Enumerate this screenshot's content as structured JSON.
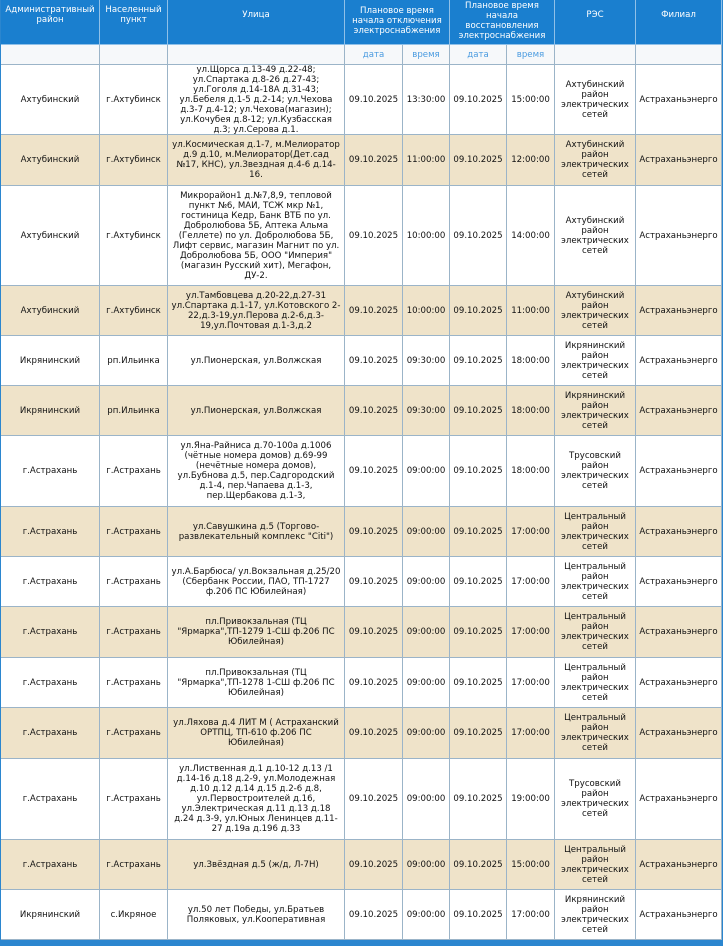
{
  "table": {
    "header": [
      "Административный район",
      "Населенный пункт",
      "Улица",
      "Плановое время начала отключения электроснабжения",
      "Плановое время начала восстановления электроснабжения",
      "РЭС",
      "Филиал"
    ],
    "subheader": [
      "дата",
      "время",
      "дата",
      "время"
    ],
    "rows": [
      [
        "Ахтубинский",
        "г.Ахтубинск",
        "ул.Щорса д.13-49 д.22-48; ул.Спартака д.8-26 д.27-43; ул.Гоголя д.14-18А д.31-43; ул.Бебеля д.1-5 д.2-14; ул.Чехова д.3-7 д.4-12; ул.Чехова(магазин); ул.Кочубея д.8-12; ул.Кузбасская д.3; ул.Серова д.1.",
        "09.10.2025",
        "13:30:00",
        "09.10.2025",
        "15:00:00",
        "Ахтубинский район электрических сетей",
        "Астраханьэнерго"
      ],
      [
        "Ахтубинский",
        "г.Ахтубинск",
        "ул.Космическая д.1-7, м.Мелиоратор д.9 д.10, м.Мелиоратор(Дет.сад №17, КНС), ул.Звездная д.4-6 д.14-16.",
        "09.10.2025",
        "11:00:00",
        "09.10.2025",
        "12:00:00",
        "Ахтубинский район электрических сетей",
        "Астраханьэнерго"
      ],
      [
        "Ахтубинский",
        "г.Ахтубинск",
        "Микрорайон1 д.№7,8,9, тепловой пункт №6, МАИ, ТСЖ мкр №1, гостиница Кедр, Банк ВТБ по ул. Добролюбова 5Б, Аптека Альма (Геллете) по ул. Добролюбова 5Б, Лифт сервис, магазин Магнит по ул. Добролюбова 5Б, ООО \"Империя\" (магазин Русский хит), Мегафон, ДУ-2.",
        "09.10.2025",
        "10:00:00",
        "09.10.2025",
        "14:00:00",
        "Ахтубинский район электрических сетей",
        "Астраханьэнерго"
      ],
      [
        "Ахтубинский",
        "г.Ахтубинск",
        "ул.Тамбовцева д.20-22,д.27-31 ул.Спартака д.1-17, ул.Котовского 2-22,д.3-19,ул.Перова д.2-6,д.3-19,ул.Почтовая д.1-3,д.2",
        "09.10.2025",
        "10:00:00",
        "09.10.2025",
        "11:00:00",
        "Ахтубинский район электрических сетей",
        "Астраханьэнерго"
      ],
      [
        "Икрянинский",
        "рп.Ильинка",
        "ул.Пионерская, ул.Волжская",
        "09.10.2025",
        "09:30:00",
        "09.10.2025",
        "18:00:00",
        "Икрянинский район электрических сетей",
        "Астраханьэнерго"
      ],
      [
        "Икрянинский",
        "рп.Ильинка",
        "ул.Пионерская, ул.Волжская",
        "09.10.2025",
        "09:30:00",
        "09.10.2025",
        "18:00:00",
        "Икрянинский район электрических сетей",
        "Астраханьэнерго"
      ],
      [
        "г.Астрахань",
        "г.Астрахань",
        "ул.Яна-Райниса д.70-100а д.1006 (чётные номера домов) д.69-99 (нечётные номера домов), ул.Бубнова д.5, пер.Садгородский д.1-4, пер.Чапаева д.1-3, пер.Щербакова д.1-3,",
        "09.10.2025",
        "09:00:00",
        "09.10.2025",
        "18:00:00",
        "Трусовский район электрических сетей",
        "Астраханьэнерго"
      ],
      [
        "г.Астрахань",
        "г.Астрахань",
        "ул.Савушкина д.5 (Торгово-развлекательный комплекс \"Citi\")",
        "09.10.2025",
        "09:00:00",
        "09.10.2025",
        "17:00:00",
        "Центральный район электрических сетей",
        "Астраханьэнерго"
      ],
      [
        "г.Астрахань",
        "г.Астрахань",
        "ул.А.Барбюса/ ул.Вокзальная д.25/20 (Сбербанк России, ПАО, ТП-1727 ф.206 ПС Юбилейная)",
        "09.10.2025",
        "09:00:00",
        "09.10.2025",
        "17:00:00",
        "Центральный район электрических сетей",
        "Астраханьэнерго"
      ],
      [
        "г.Астрахань",
        "г.Астрахань",
        "пл.Привокзальная (ТЦ \"Ярмарка\",ТП-1279 1-СШ ф.206 ПС Юбилейная)",
        "09.10.2025",
        "09:00:00",
        "09.10.2025",
        "17:00:00",
        "Центральный район электрических сетей",
        "Астраханьэнерго"
      ],
      [
        "г.Астрахань",
        "г.Астрахань",
        "пл.Привокзальная (ТЦ \"Ярмарка\",ТП-1278 1-СШ ф.206 ПС Юбилейная)",
        "09.10.2025",
        "09:00:00",
        "09.10.2025",
        "17:00:00",
        "Центральный район электрических сетей",
        "Астраханьэнерго"
      ],
      [
        "г.Астрахань",
        "г.Астрахань",
        "ул.Ляхова д.4 ЛИТ М ( Астраханский ОРТПЦ, ТП-610 ф.206 ПС Юбилейная)",
        "09.10.2025",
        "09:00:00",
        "09.10.2025",
        "17:00:00",
        "Центральный район электрических сетей",
        "Астраханьэнерго"
      ],
      [
        "г.Астрахань",
        "г.Астрахань",
        "ул.Лиственная д.1 д.10-12 д.13 /1 д.14-16 д.18 д.2-9, ул.Молодежная д.10 д.12 д.14 д.15 д.2-6 д.8, ул.Первостроителей д.16, ул.Электрическая д.11 д.13 д.18 д.24 д.3-9, ул.Юных Ленинцев д.11-27 д.19а д.196 д.33",
        "09.10.2025",
        "09:00:00",
        "09.10.2025",
        "19:00:00",
        "Трусовский район электрических сетей",
        "Астраханьэнерго"
      ],
      [
        "г.Астрахань",
        "г.Астрахань",
        "ул.Звёздная д.5 (ж/д, Л-7Н)",
        "09.10.2025",
        "09:00:00",
        "09.10.2025",
        "15:00:00",
        "Центральный район электрических сетей",
        "Астраханьэнерго"
      ],
      [
        "Икрянинский",
        "с.Икряное",
        "ул.50 лет Победы, ул.Братьев Поляковых, ул.Кооперативная",
        "09.10.2025",
        "09:00:00",
        "09.10.2025",
        "17:00:00",
        "Икрянинский район электрических сетей",
        "Астраханьэнерго"
      ]
    ]
  }
}
